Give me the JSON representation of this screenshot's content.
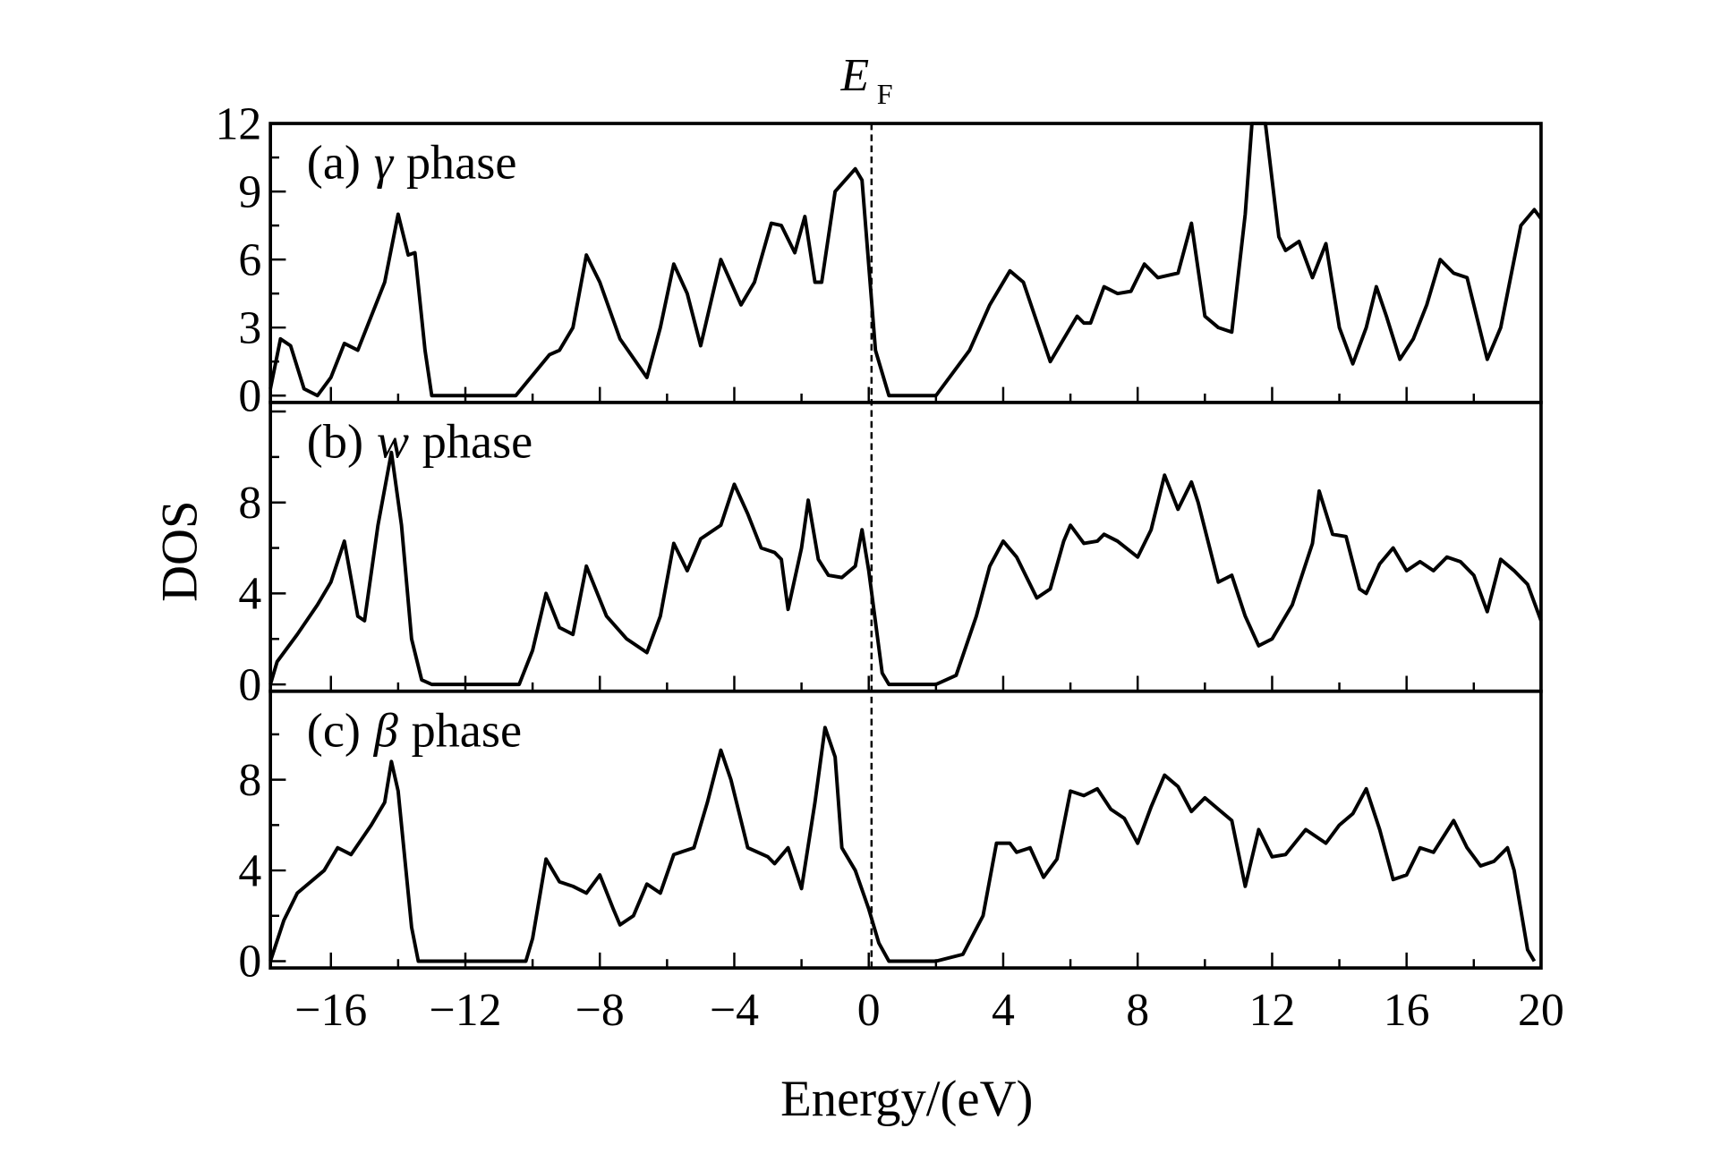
{
  "chart_data": {
    "type": "line",
    "xlabel": "Energy/(eV)",
    "ylabel": "DOS",
    "fermi_label": {
      "main": "E",
      "sub": "F"
    },
    "fermi_energy": 0,
    "xlim": [
      -17.8,
      20
    ],
    "xticks": [
      -16,
      -12,
      -8,
      -4,
      0,
      4,
      8,
      12,
      16,
      20
    ],
    "xtick_labels": [
      "−16",
      "−12",
      "−8",
      "−4",
      "0",
      "4",
      "8",
      "12",
      "16",
      "20"
    ],
    "panels": [
      {
        "label_prefix": "(a)",
        "label_symbol": "γ",
        "label_suffix": "phase",
        "ylim": [
          -0.3,
          12
        ],
        "yticks": [
          0,
          3,
          6,
          9,
          12
        ],
        "ytick_labels": [
          "0",
          "3",
          "6",
          "9",
          "12"
        ],
        "x": [
          -18,
          -17.5,
          -17.2,
          -16.8,
          -16.4,
          -16,
          -15.6,
          -15.2,
          -14.8,
          -14.4,
          -14,
          -13.7,
          -13.5,
          -13.2,
          -13,
          -10.5,
          -9.5,
          -9.2,
          -8.8,
          -8.4,
          -8,
          -7.4,
          -6.6,
          -6.2,
          -5.8,
          -5.4,
          -5,
          -4.4,
          -3.8,
          -3.4,
          -2.9,
          -2.6,
          -2.2,
          -1.9,
          -1.6,
          -1.4,
          -1,
          -0.4,
          -0.2,
          0.2,
          0.6,
          2,
          3,
          3.6,
          4.2,
          4.6,
          5.4,
          5.8,
          6.2,
          6.4,
          6.6,
          7,
          7.4,
          7.8,
          8.2,
          8.6,
          9.2,
          9.6,
          10,
          10.4,
          10.8,
          11.2,
          11.4,
          11.8,
          12.2,
          12.4,
          12.8,
          13.2,
          13.6,
          14,
          14.4,
          14.8,
          15.1,
          15.4,
          15.8,
          16.2,
          16.6,
          17,
          17.4,
          17.8,
          18.4,
          18.8,
          19.4,
          19.8,
          20
        ],
        "y": [
          0.3,
          2.5,
          2.2,
          0.3,
          0,
          0.8,
          2.3,
          2,
          3.5,
          5,
          8,
          6.2,
          6.3,
          2,
          0,
          0,
          1.8,
          2,
          3,
          6.2,
          5,
          2.5,
          0.8,
          3,
          5.8,
          4.5,
          2.2,
          6,
          4,
          5,
          7.6,
          7.5,
          6.3,
          7.9,
          5,
          5,
          9,
          10,
          9.5,
          2,
          0,
          0,
          2,
          4,
          5.5,
          5,
          1.5,
          2.5,
          3.5,
          3.2,
          3.2,
          4.8,
          4.5,
          4.6,
          5.8,
          5.2,
          5.4,
          7.6,
          3.5,
          3,
          2.8,
          8,
          12,
          12,
          7,
          6.4,
          6.8,
          5.2,
          6.7,
          3,
          1.4,
          3,
          4.8,
          3.5,
          1.6,
          2.5,
          4,
          6,
          5.4,
          5.2,
          1.6,
          3,
          7.5,
          8.2,
          7.8
        ]
      },
      {
        "label_prefix": "(b)",
        "label_symbol": "w",
        "label_suffix": "phase",
        "ylim": [
          -0.3,
          12.4
        ],
        "yticks": [
          0,
          4,
          8
        ],
        "ytick_labels": [
          "0",
          "4",
          "8"
        ],
        "x": [
          -18,
          -17.6,
          -17,
          -16.4,
          -16,
          -15.6,
          -15.2,
          -15,
          -14.6,
          -14.2,
          -13.9,
          -13.6,
          -13.3,
          -13,
          -10.4,
          -10,
          -9.6,
          -9.2,
          -8.8,
          -8.4,
          -7.8,
          -7.2,
          -6.6,
          -6.2,
          -5.8,
          -5.4,
          -5,
          -4.4,
          -4,
          -3.6,
          -3.2,
          -2.8,
          -2.6,
          -2.4,
          -2,
          -1.8,
          -1.5,
          -1.2,
          -0.8,
          -0.4,
          -0.2,
          0,
          0.4,
          0.6,
          2,
          2.6,
          3.2,
          3.6,
          4,
          4.4,
          5,
          5.4,
          5.8,
          6,
          6.4,
          6.8,
          7,
          7.4,
          8,
          8.4,
          8.8,
          9.2,
          9.6,
          9.8,
          10.4,
          10.8,
          11.2,
          11.6,
          12,
          12.6,
          13.2,
          13.4,
          13.8,
          14.2,
          14.6,
          14.8,
          15.2,
          15.6,
          16,
          16.4,
          16.8,
          17.2,
          17.6,
          18,
          18.4,
          18.8,
          19.2,
          19.6,
          20
        ],
        "y": [
          0,
          1,
          2.2,
          3.5,
          4.5,
          6.3,
          3,
          2.8,
          7,
          10.2,
          7,
          2,
          0.2,
          0,
          0,
          1.5,
          4,
          2.5,
          2.2,
          5.2,
          3,
          2,
          1.4,
          3,
          6.2,
          5,
          6.4,
          7,
          8.8,
          7.5,
          6,
          5.8,
          5.5,
          3.3,
          6,
          8.1,
          5.5,
          4.8,
          4.7,
          5.2,
          6.8,
          5,
          0.5,
          0,
          0,
          0.4,
          3,
          5.2,
          6.3,
          5.6,
          3.8,
          4.2,
          6.3,
          7,
          6.2,
          6.3,
          6.6,
          6.3,
          5.6,
          6.8,
          9.2,
          7.7,
          8.9,
          8,
          4.5,
          4.8,
          3,
          1.7,
          2,
          3.5,
          6.2,
          8.5,
          6.6,
          6.5,
          4.2,
          4,
          5.3,
          6,
          5,
          5.4,
          5,
          5.6,
          5.4,
          4.8,
          3.2,
          5.5,
          5,
          4.4,
          2.8
        ]
      },
      {
        "label_prefix": "(c)",
        "label_symbol": "β",
        "label_suffix": "phase",
        "ylim": [
          -0.3,
          11.9
        ],
        "yticks": [
          0,
          4,
          8
        ],
        "ytick_labels": [
          "0",
          "4",
          "8"
        ],
        "x": [
          -18,
          -17.4,
          -17,
          -16.6,
          -16.2,
          -15.8,
          -15.4,
          -14.8,
          -14.4,
          -14.2,
          -14,
          -13.6,
          -13.4,
          -10.2,
          -10,
          -9.6,
          -9.2,
          -8.8,
          -8.4,
          -8,
          -7.6,
          -7.4,
          -7,
          -6.6,
          -6.2,
          -5.8,
          -5.2,
          -4.8,
          -4.4,
          -4.1,
          -3.6,
          -3,
          -2.8,
          -2.4,
          -2,
          -1.6,
          -1.3,
          -1,
          -0.8,
          -0.4,
          0,
          0.3,
          0.6,
          2,
          2.8,
          3.4,
          3.8,
          4.2,
          4.4,
          4.8,
          5.2,
          5.6,
          6,
          6.4,
          6.8,
          7.2,
          7.6,
          8,
          8.4,
          8.8,
          9.2,
          9.6,
          10,
          10.4,
          10.8,
          11.2,
          11.6,
          12,
          12.4,
          13,
          13.6,
          14,
          14.4,
          14.8,
          15.2,
          15.6,
          16,
          16.4,
          16.8,
          17.4,
          17.8,
          18.2,
          18.6,
          19,
          19.2,
          19.6,
          19.8
        ],
        "y": [
          0,
          1.8,
          3,
          3.5,
          4,
          5,
          4.7,
          6,
          7,
          8.8,
          7.5,
          1.5,
          0,
          0,
          1,
          4.5,
          3.5,
          3.3,
          3,
          3.8,
          2.3,
          1.6,
          2,
          3.4,
          3,
          4.7,
          5,
          7,
          9.3,
          8,
          5,
          4.6,
          4.3,
          5,
          3.2,
          7,
          10.3,
          9,
          5,
          4,
          2.3,
          0.8,
          0,
          0,
          0.3,
          2,
          5.2,
          5.2,
          4.8,
          5,
          3.7,
          4.5,
          7.5,
          7.3,
          7.6,
          6.7,
          6.3,
          5.2,
          6.8,
          8.2,
          7.7,
          6.6,
          7.2,
          6.7,
          6.2,
          3.3,
          5.8,
          4.6,
          4.7,
          5.8,
          5.2,
          6,
          6.5,
          7.6,
          5.8,
          3.6,
          3.8,
          5,
          4.8,
          6.2,
          5,
          4.2,
          4.4,
          5,
          4,
          0.5,
          0
        ]
      }
    ]
  }
}
